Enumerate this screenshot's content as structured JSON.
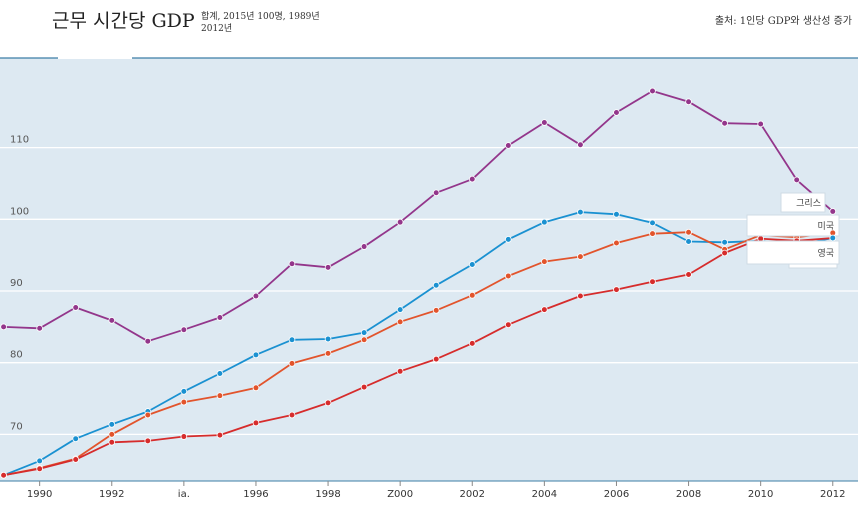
{
  "header": {
    "title": "근무 시간당 GDP",
    "subtitle": "합계, 2015년 100명, 1989년 2012년",
    "source": "출처: 1인당 GDP와 생산성 증가"
  },
  "chart_data": {
    "type": "line",
    "title": "근무 시간당 GDP",
    "x": [
      1989,
      1990,
      1991,
      1992,
      1993,
      1994,
      1995,
      1996,
      1997,
      1998,
      1999,
      2000,
      2001,
      2002,
      2003,
      2004,
      2005,
      2006,
      2007,
      2008,
      2009,
      2010,
      2011,
      2012
    ],
    "xticks": [
      1990,
      1992,
      1994,
      1996,
      1998,
      2000,
      2002,
      2004,
      2006,
      2008,
      2010,
      2012
    ],
    "xtick_labels": [
      "1990",
      "1992",
      "ia.",
      "1996",
      "1998",
      "Z000",
      "2002",
      "2004",
      "2006",
      "2008",
      "2010",
      "2012"
    ],
    "yticks": [
      70,
      80,
      90,
      100,
      110
    ],
    "ylim": [
      63.5,
      122.5
    ],
    "xlim": [
      1988.9,
      2012.7
    ],
    "grid": true,
    "series": [
      {
        "name": "그리스",
        "color": "#93368b",
        "values": [
          85.0,
          84.8,
          87.7,
          85.9,
          83.0,
          84.6,
          86.3,
          89.3,
          93.8,
          93.3,
          96.2,
          99.6,
          103.7,
          105.6,
          110.3,
          113.5,
          110.4,
          114.9,
          117.9,
          116.4,
          113.4,
          113.3,
          105.5,
          101.1
        ]
      },
      {
        "name": "미국",
        "color": "#1a91d1",
        "values": [
          64.3,
          66.3,
          69.4,
          71.4,
          73.2,
          76.0,
          78.5,
          81.1,
          83.2,
          83.3,
          84.2,
          87.4,
          90.8,
          93.7,
          97.2,
          99.6,
          101.0,
          100.7,
          99.5,
          96.9,
          96.8,
          97.0,
          96.4,
          97.4
        ]
      },
      {
        "name": "",
        "color": "#e2542c",
        "values": [
          64.3,
          65.3,
          66.6,
          70.0,
          72.7,
          74.5,
          75.4,
          76.5,
          79.9,
          81.3,
          83.2,
          85.7,
          87.3,
          89.4,
          92.1,
          94.1,
          94.8,
          96.7,
          98.0,
          98.2,
          95.8,
          97.8,
          97.5,
          98.1
        ]
      },
      {
        "name": "영국",
        "color": "#d62c2c",
        "values": [
          64.3,
          65.2,
          66.5,
          68.9,
          69.1,
          69.7,
          69.9,
          71.6,
          72.7,
          74.4,
          76.6,
          78.8,
          80.5,
          82.7,
          85.3,
          87.4,
          89.3,
          90.2,
          91.3,
          92.3,
          95.3,
          97.3,
          97.0,
          97.4
        ]
      }
    ],
    "legend": "right",
    "legend_entries": [
      "그리스",
      "미국",
      "영국"
    ]
  }
}
